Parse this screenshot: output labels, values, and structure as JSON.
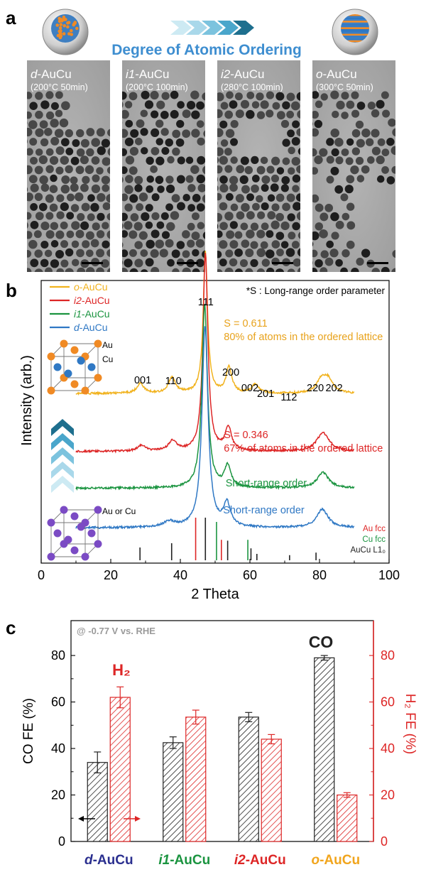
{
  "panel_a": {
    "letter": "a",
    "banner": "Degree of Atomic Ordering",
    "colors": {
      "banner": "#3e8ed0",
      "chevron_light": "#bfe3ef",
      "chevron_dark": "#1e6f8e",
      "gold": "#f08a24",
      "blue": "#2f78c4"
    },
    "images": [
      {
        "prefix": "d",
        "suffix": "-AuCu",
        "condition": "(200°C 50min)"
      },
      {
        "prefix": "i1",
        "suffix": "-AuCu",
        "condition": "(200°C 100min)"
      },
      {
        "prefix": "i2",
        "suffix": "-AuCu",
        "condition": "(280°C 100min)"
      },
      {
        "prefix": "o",
        "suffix": "-AuCu",
        "condition": "(300°C 50min)"
      }
    ]
  },
  "chart_data": [
    {
      "panel": "b",
      "type": "line",
      "xlabel": "2 Theta",
      "ylabel": "Intensity (arb.)",
      "xlim": [
        0,
        100
      ],
      "xticks": [
        0,
        20,
        40,
        60,
        80,
        100
      ],
      "note": "*S : Long-range order parameter",
      "legend_position": "top-left",
      "series": [
        {
          "name_prefix": "o",
          "name_suffix": "-AuCu",
          "color": "#f1b21d",
          "offset": 0.6,
          "peaks": [
            [
              28.5,
              0.035,
              1.2
            ],
            [
              37.6,
              0.055,
              1.2
            ],
            [
              47.2,
              0.5,
              0.75
            ],
            [
              54.0,
              0.09,
              1.0
            ],
            [
              61.5,
              0.03,
              1.3
            ],
            [
              80.5,
              0.045,
              1.6
            ],
            [
              82.5,
              0.045,
              1.6
            ]
          ]
        },
        {
          "name_prefix": "i2",
          "name_suffix": "-AuCu",
          "color": "#dd2626",
          "offset": 0.395,
          "peaks": [
            [
              28.8,
              0.02,
              1.4
            ],
            [
              37.8,
              0.035,
              1.4
            ],
            [
              47.2,
              0.7,
              0.85
            ],
            [
              53.8,
              0.08,
              1.1
            ],
            [
              81.0,
              0.065,
              2.2
            ]
          ]
        },
        {
          "name_prefix": "i1",
          "name_suffix": "-AuCu",
          "color": "#1b9440",
          "offset": 0.265,
          "peaks": [
            [
              47.0,
              0.65,
              0.95
            ],
            [
              53.6,
              0.075,
              1.1
            ],
            [
              81.0,
              0.055,
              2.0
            ]
          ]
        },
        {
          "name_prefix": "d",
          "name_suffix": "-AuCu",
          "color": "#2f78c4",
          "offset": 0.125,
          "peaks": [
            [
              36.8,
              0.02,
              2.0
            ],
            [
              47.1,
              0.71,
              1.05
            ],
            [
              53.4,
              0.08,
              1.2
            ],
            [
              80.8,
              0.065,
              2.0
            ]
          ]
        }
      ],
      "peak_labels": [
        {
          "text": "111",
          "x": 47.3
        },
        {
          "text": "001",
          "x": 29.2
        },
        {
          "text": "110",
          "x": 38.0
        },
        {
          "text": "200",
          "x": 54.5
        },
        {
          "text": "002",
          "x": 60.0
        },
        {
          "text": "201",
          "x": 64.5
        },
        {
          "text": "112",
          "x": 71.2
        },
        {
          "text": "220",
          "x": 78.8
        },
        {
          "text": "202",
          "x": 84.2
        }
      ],
      "annotations": [
        {
          "lines": [
            "S = 0.611",
            "80% of atoms in the ordered lattice"
          ],
          "color": "#e8a21b",
          "x": 52.5
        },
        {
          "lines": [
            "S = 0.346",
            "67% of atoms in the ordered lattice"
          ],
          "color": "#dd2626",
          "x": 52.5
        },
        {
          "lines": [
            "Short-range order"
          ],
          "color": "#1b9440",
          "x": 53.0
        },
        {
          "lines": [
            "Short-range order"
          ],
          "color": "#2f78c4",
          "x": 52.3
        }
      ],
      "reference_patterns": [
        {
          "name": "Au fcc",
          "color": "#dd2626",
          "positions": [
            [
              44.4,
              1.0
            ],
            [
              51.8,
              0.48
            ]
          ]
        },
        {
          "name": "Cu fcc",
          "color": "#1b9440",
          "positions": [
            [
              50.4,
              0.9
            ],
            [
              59.4,
              0.48
            ]
          ]
        },
        {
          "name": "AuCu L1₀",
          "color": "#222222",
          "positions": [
            [
              28.4,
              0.3
            ],
            [
              37.5,
              0.4
            ],
            [
              47.2,
              1.0
            ],
            [
              53.6,
              0.46
            ],
            [
              60.3,
              0.28
            ],
            [
              62.0,
              0.15
            ],
            [
              71.4,
              0.12
            ],
            [
              79.0,
              0.18
            ]
          ]
        }
      ],
      "structures": [
        {
          "labels": [
            "Au",
            "Cu"
          ]
        },
        {
          "labels": [
            "Au or Cu"
          ]
        }
      ]
    },
    {
      "panel": "c",
      "type": "bar",
      "condition_label": "@ -0.77 V vs. RHE",
      "ylabel_left": "CO FE (%)",
      "ylabel_right": "H₂ FE (%)",
      "ylim_left": [
        0,
        95
      ],
      "ylim_right": [
        0,
        95
      ],
      "yticks": [
        0,
        20,
        40,
        60,
        80
      ],
      "categories": [
        {
          "prefix": "d",
          "suffix": "-AuCu",
          "color": "#2a2f8f"
        },
        {
          "prefix": "i1",
          "suffix": "-AuCu",
          "color": "#1b9440"
        },
        {
          "prefix": "i2",
          "suffix": "-AuCu",
          "color": "#dd2626"
        },
        {
          "prefix": "o",
          "suffix": "-AuCu",
          "color": "#f1a51d"
        }
      ],
      "series": [
        {
          "name": "CO",
          "axis": "left",
          "color": "#222222",
          "values": [
            34,
            42.5,
            53.5,
            79
          ],
          "errors": [
            4.5,
            2.5,
            2,
            1
          ]
        },
        {
          "name": "H₂",
          "axis": "right",
          "color": "#dd2626",
          "values": [
            62,
            53.5,
            44,
            20
          ],
          "errors": [
            4.5,
            3,
            2,
            1
          ]
        }
      ],
      "series_labels": {
        "co": "CO",
        "h2": "H₂"
      }
    }
  ]
}
